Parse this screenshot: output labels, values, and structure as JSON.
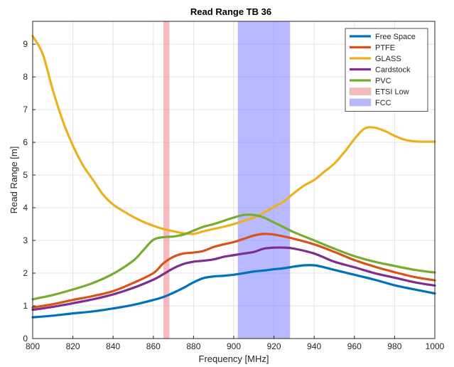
{
  "chart_data": {
    "type": "line",
    "title": "Read Range TB 36",
    "xlabel": "Frequency [MHz]",
    "ylabel": "Read Range [m]",
    "xlim": [
      800,
      1000
    ],
    "ylim": [
      0,
      9.7
    ],
    "xticks": [
      800,
      820,
      840,
      860,
      880,
      900,
      920,
      940,
      960,
      980,
      1000
    ],
    "yticks": [
      0,
      1,
      2,
      3,
      4,
      5,
      6,
      7,
      8,
      9
    ],
    "grid": true,
    "legend_position": "top-right",
    "bands": [
      {
        "name": "ETSI Low",
        "x_start": 865,
        "x_end": 868,
        "color": "#f4a3a8",
        "opacity": 0.75
      },
      {
        "name": "FCC",
        "x_start": 902,
        "x_end": 928,
        "color": "#8080ff",
        "opacity": 0.55
      }
    ],
    "series": [
      {
        "name": "Free Space",
        "color": "#0072bd",
        "x": [
          800,
          810,
          820,
          830,
          840,
          850,
          860,
          865,
          870,
          875,
          880,
          885,
          890,
          895,
          900,
          905,
          910,
          915,
          920,
          925,
          930,
          935,
          940,
          945,
          950,
          960,
          970,
          980,
          990,
          1000
        ],
        "y": [
          0.65,
          0.7,
          0.77,
          0.83,
          0.92,
          1.03,
          1.18,
          1.27,
          1.4,
          1.55,
          1.72,
          1.85,
          1.9,
          1.92,
          1.95,
          2.0,
          2.05,
          2.08,
          2.12,
          2.15,
          2.2,
          2.24,
          2.24,
          2.18,
          2.1,
          1.95,
          1.8,
          1.63,
          1.5,
          1.38
        ]
      },
      {
        "name": "PTFE",
        "color": "#d95319",
        "x": [
          800,
          810,
          820,
          830,
          840,
          850,
          860,
          865,
          870,
          875,
          880,
          885,
          890,
          895,
          900,
          905,
          910,
          915,
          920,
          925,
          930,
          940,
          950,
          960,
          970,
          980,
          990,
          1000
        ],
        "y": [
          0.95,
          1.05,
          1.18,
          1.3,
          1.45,
          1.7,
          2.0,
          2.3,
          2.5,
          2.6,
          2.63,
          2.68,
          2.8,
          2.88,
          2.95,
          3.05,
          3.15,
          3.2,
          3.18,
          3.12,
          3.05,
          2.88,
          2.65,
          2.4,
          2.2,
          2.03,
          1.88,
          1.78
        ]
      },
      {
        "name": "GLASS",
        "color": "#edb120",
        "x": [
          800,
          805,
          810,
          815,
          820,
          825,
          830,
          835,
          840,
          845,
          850,
          855,
          860,
          865,
          870,
          875,
          880,
          885,
          890,
          895,
          900,
          905,
          910,
          915,
          920,
          925,
          930,
          935,
          940,
          945,
          950,
          955,
          960,
          965,
          970,
          975,
          980,
          985,
          990,
          995,
          1000
        ],
        "y": [
          9.25,
          8.7,
          7.6,
          6.65,
          5.9,
          5.3,
          4.85,
          4.4,
          4.1,
          3.9,
          3.72,
          3.57,
          3.45,
          3.35,
          3.28,
          3.22,
          3.2,
          3.28,
          3.35,
          3.42,
          3.5,
          3.6,
          3.7,
          3.85,
          4.02,
          4.2,
          4.45,
          4.68,
          4.85,
          5.1,
          5.35,
          5.7,
          6.1,
          6.42,
          6.45,
          6.35,
          6.2,
          6.08,
          6.03,
          6.02,
          6.02
        ]
      },
      {
        "name": "Cardstock",
        "color": "#7e2f8e",
        "x": [
          800,
          810,
          820,
          830,
          840,
          850,
          860,
          865,
          870,
          875,
          880,
          885,
          890,
          895,
          900,
          905,
          910,
          915,
          920,
          925,
          930,
          940,
          950,
          960,
          970,
          980,
          990,
          1000
        ],
        "y": [
          0.88,
          0.97,
          1.08,
          1.2,
          1.35,
          1.55,
          1.8,
          1.97,
          2.15,
          2.28,
          2.35,
          2.38,
          2.42,
          2.5,
          2.55,
          2.6,
          2.65,
          2.75,
          2.78,
          2.78,
          2.75,
          2.6,
          2.35,
          2.18,
          2.0,
          1.86,
          1.72,
          1.62
        ]
      },
      {
        "name": "PVC",
        "color": "#77ac30",
        "x": [
          800,
          810,
          820,
          830,
          840,
          850,
          855,
          860,
          865,
          870,
          875,
          880,
          885,
          890,
          895,
          900,
          905,
          910,
          915,
          920,
          925,
          930,
          940,
          950,
          960,
          970,
          980,
          990,
          1000
        ],
        "y": [
          1.2,
          1.33,
          1.5,
          1.7,
          1.98,
          2.38,
          2.7,
          3.02,
          3.1,
          3.12,
          3.18,
          3.3,
          3.42,
          3.5,
          3.6,
          3.7,
          3.78,
          3.78,
          3.7,
          3.55,
          3.4,
          3.25,
          3.0,
          2.75,
          2.52,
          2.35,
          2.22,
          2.1,
          2.02
        ]
      }
    ]
  }
}
